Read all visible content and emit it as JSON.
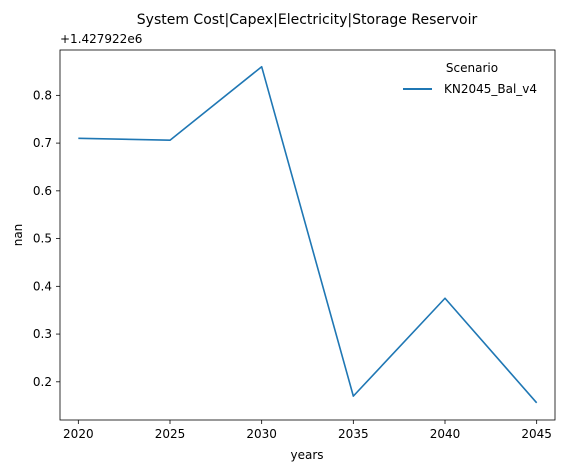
{
  "chart_data": {
    "type": "line",
    "title": "System Cost|Capex|Electricity|Storage Reservoir",
    "xlabel": "years",
    "ylabel": "nan",
    "y_offset_label": "+1.427922e6",
    "x": [
      2020,
      2025,
      2030,
      2035,
      2040,
      2045
    ],
    "x_ticks": [
      "2020",
      "2025",
      "2030",
      "2035",
      "2040",
      "2045"
    ],
    "y_ticks": [
      "0.2",
      "0.3",
      "0.4",
      "0.5",
      "0.6",
      "0.7",
      "0.8"
    ],
    "y_tick_values": [
      0.2,
      0.3,
      0.4,
      0.5,
      0.6,
      0.7,
      0.8
    ],
    "xlim": [
      2019,
      2046
    ],
    "ylim": [
      0.12,
      0.895
    ],
    "grid": false,
    "legend": {
      "title": "Scenario",
      "placement": "top-right"
    },
    "series": [
      {
        "name": "KN2045_Bal_v4",
        "color": "#1f77b4",
        "values": [
          0.71,
          0.706,
          0.86,
          0.17,
          0.375,
          0.156
        ]
      }
    ]
  }
}
